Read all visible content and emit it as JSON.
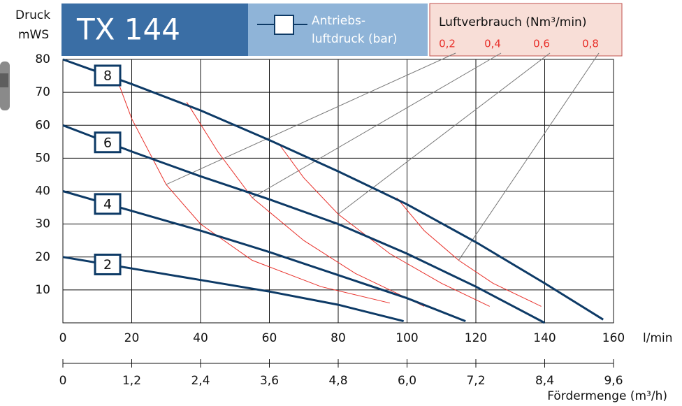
{
  "chart_data": {
    "type": "line",
    "title": "TX 144",
    "y_label_lines": [
      "Druck",
      "mWS"
    ],
    "x_label": "l/min",
    "x2_label": "Fördermenge (m³/h)",
    "legend_title_lines": [
      "Antriebs-",
      "luftdruck (bar)"
    ],
    "consumption_title": "Luftverbrauch (Nm³/min)",
    "xlim": [
      0,
      160
    ],
    "xticks": [
      0,
      20,
      40,
      60,
      80,
      100,
      120,
      140,
      160
    ],
    "x2lim": [
      0,
      9.6
    ],
    "x2ticks": [
      0,
      {
        "value": 1.2,
        "label": "1,2"
      },
      {
        "value": 2.4,
        "label": "2,4"
      },
      {
        "value": 3.6,
        "label": "3,6"
      },
      {
        "value": 4.8,
        "label": "4,8"
      },
      {
        "value": 6.0,
        "label": "6,0"
      },
      {
        "value": 7.2,
        "label": "7,2"
      },
      {
        "value": 8.4,
        "label": "8,4"
      },
      {
        "value": 9.6,
        "label": "9,6"
      }
    ],
    "ylim": [
      0,
      80
    ],
    "yticks": [
      10,
      20,
      30,
      40,
      50,
      60,
      70,
      80
    ],
    "grid": true,
    "series": [
      {
        "name": "8",
        "color": "#0d3a66",
        "x": [
          0,
          20,
          40,
          60,
          80,
          100,
          120,
          140,
          157
        ],
        "values": [
          80,
          72.5,
          64.5,
          55.5,
          46,
          36,
          24.5,
          12,
          1
        ]
      },
      {
        "name": "6",
        "color": "#0d3a66",
        "x": [
          0,
          20,
          40,
          60,
          80,
          100,
          120,
          140
        ],
        "values": [
          60,
          52,
          44.5,
          37.5,
          30,
          21,
          11,
          0
        ]
      },
      {
        "name": "4",
        "color": "#0d3a66",
        "x": [
          0,
          20,
          40,
          60,
          80,
          100,
          117
        ],
        "values": [
          40,
          34,
          28,
          21.5,
          14.5,
          7.5,
          0.5
        ]
      },
      {
        "name": "2",
        "color": "#0d3a66",
        "x": [
          0,
          20,
          40,
          60,
          80,
          99
        ],
        "values": [
          20,
          16.5,
          13,
          9.5,
          5.5,
          0.5
        ]
      }
    ],
    "air_consumption": [
      {
        "name": "0,2",
        "color": "#e8302a",
        "x": [
          15,
          20,
          30,
          40,
          55,
          75,
          95
        ],
        "values": [
          76,
          62,
          42,
          30,
          19,
          11,
          6
        ]
      },
      {
        "name": "0,4",
        "color": "#e8302a",
        "x": [
          36,
          45,
          55,
          70,
          85,
          105
        ],
        "values": [
          67,
          52,
          38,
          25,
          15,
          5
        ]
      },
      {
        "name": "0,6",
        "color": "#e8302a",
        "x": [
          63,
          70,
          80,
          95,
          110,
          124
        ],
        "values": [
          54,
          44,
          33,
          21,
          12,
          5
        ]
      },
      {
        "name": "0,8",
        "color": "#e8302a",
        "x": [
          97,
          105,
          115,
          125,
          139
        ],
        "values": [
          38,
          28,
          19,
          12,
          5
        ]
      }
    ]
  }
}
